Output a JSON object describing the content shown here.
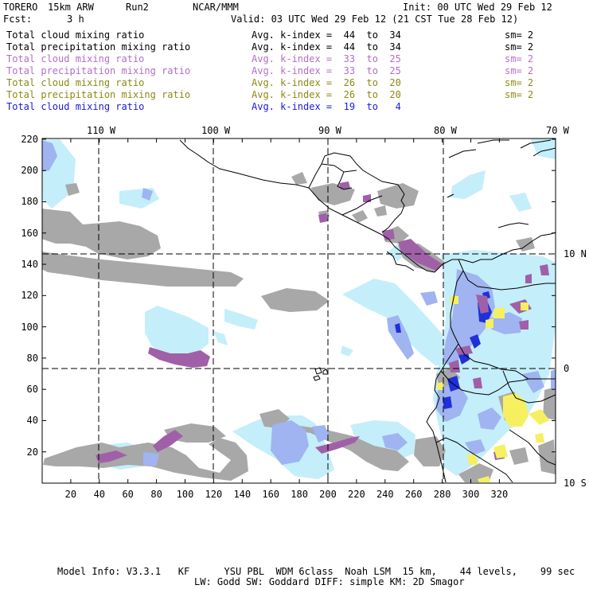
{
  "header": {
    "model": "TORERO",
    "resolution": "15km ARW",
    "run": "Run2",
    "org": "NCAR/MMM",
    "init": "Init: 00 UTC Wed 29 Feb 12",
    "fcst_label": "Fcst:",
    "fcst_value": "3 h",
    "valid": "Valid: 03 UTC Wed 29 Feb 12 (21 CST Tue 28 Feb 12)"
  },
  "legend": [
    {
      "name": "Total cloud mixing ratio",
      "kindex": "Avg. k-index =  44  to  34",
      "sm": "sm= 2",
      "color": "#000000"
    },
    {
      "name": "Total precipitation mixing ratio",
      "kindex": "Avg. k-index =  44  to  34",
      "sm": "sm= 2",
      "color": "#000000"
    },
    {
      "name": "Total cloud mixing ratio",
      "kindex": "Avg. k-index =  33  to  25",
      "sm": "sm= 2",
      "color": "#b070c8"
    },
    {
      "name": "Total precipitation mixing ratio",
      "kindex": "Avg. k-index =  33  to  25",
      "sm": "sm= 2",
      "color": "#b070c8"
    },
    {
      "name": "Total cloud mixing ratio",
      "kindex": "Avg. k-index =  26  to  20",
      "sm": "sm= 2",
      "color": "#8c8a14"
    },
    {
      "name": "Total precipitation mixing ratio",
      "kindex": "Avg. k-index =  26  to  20",
      "sm": "sm= 2",
      "color": "#8c8a14"
    },
    {
      "name": "Total cloud mixing ratio",
      "kindex": "Avg. k-index =  19  to   4",
      "sm": "",
      "color": "#1a1ae0"
    }
  ],
  "map": {
    "lon_labels": [
      "110 W",
      "100 W",
      "90 W",
      "80 W",
      "70 W"
    ],
    "lat_labels": [
      "10 N",
      "0",
      "10 S"
    ],
    "grid_y_ticks": [
      "220",
      "200",
      "180",
      "160",
      "140",
      "120",
      "100",
      "80",
      "60",
      "40",
      "20"
    ],
    "grid_x_ticks": [
      "20",
      "40",
      "60",
      "80",
      "100",
      "120",
      "140",
      "160",
      "180",
      "200",
      "220",
      "240",
      "260",
      "280",
      "300",
      "320"
    ],
    "colors": {
      "gray": "#a8a8a8",
      "purple": "#a060a8",
      "light_blue": "#c4eefa",
      "blue_mid": "#9fb4f0",
      "blue_dark": "#2030d8",
      "yellow": "#f6f060"
    }
  },
  "footer": {
    "line1": "Model Info: V3.3.1   KF      YSU PBL  WDM 6class  Noah LSM  15 km,    44 levels,    99 sec",
    "line2": "LW: Godd SW: Goddard DIFF: simple KM: 2D Smagor"
  }
}
